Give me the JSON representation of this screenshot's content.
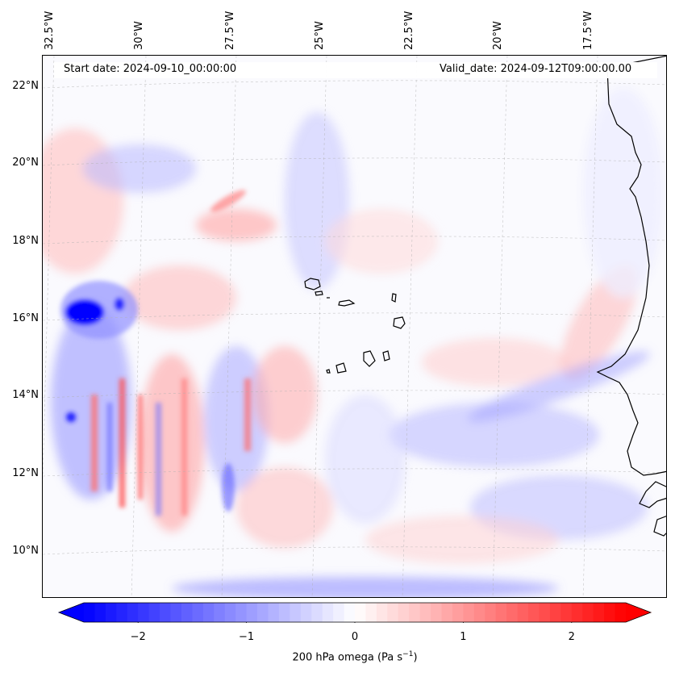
{
  "header": {
    "start_date": "Start date: 2024-09-10_00:00:00",
    "valid_date": "Valid_date: 2024-09-12T09:00:00.00"
  },
  "map": {
    "longitude_labels": [
      "32.5°W",
      "30°W",
      "27.5°W",
      "25°W",
      "22.5°W",
      "20°W",
      "17.5°W"
    ],
    "latitude_labels": [
      "22°N",
      "20°N",
      "18°N",
      "16°N",
      "14°N",
      "12°N",
      "10°N"
    ],
    "extent": {
      "lon_west": -32.7,
      "lon_east": -15.7,
      "lat_south": 8.9,
      "lat_north": 22.8
    },
    "field": "200 hPa vertical velocity (omega)",
    "colormap": {
      "negative": "#0000ff",
      "zero": "#ffffff",
      "positive": "#ff0000"
    },
    "coastline_color": "#000000",
    "gridlines": true
  },
  "colorbar": {
    "ticks": [
      "−2",
      "−1",
      "0",
      "1",
      "2"
    ],
    "tick_values": [
      -2,
      -1,
      0,
      1,
      2
    ],
    "range": [
      -2.5,
      2.5
    ],
    "extend": "both",
    "label_main": "200 hPa omega (Pa s",
    "label_exp": "−1",
    "label_end": ")"
  }
}
